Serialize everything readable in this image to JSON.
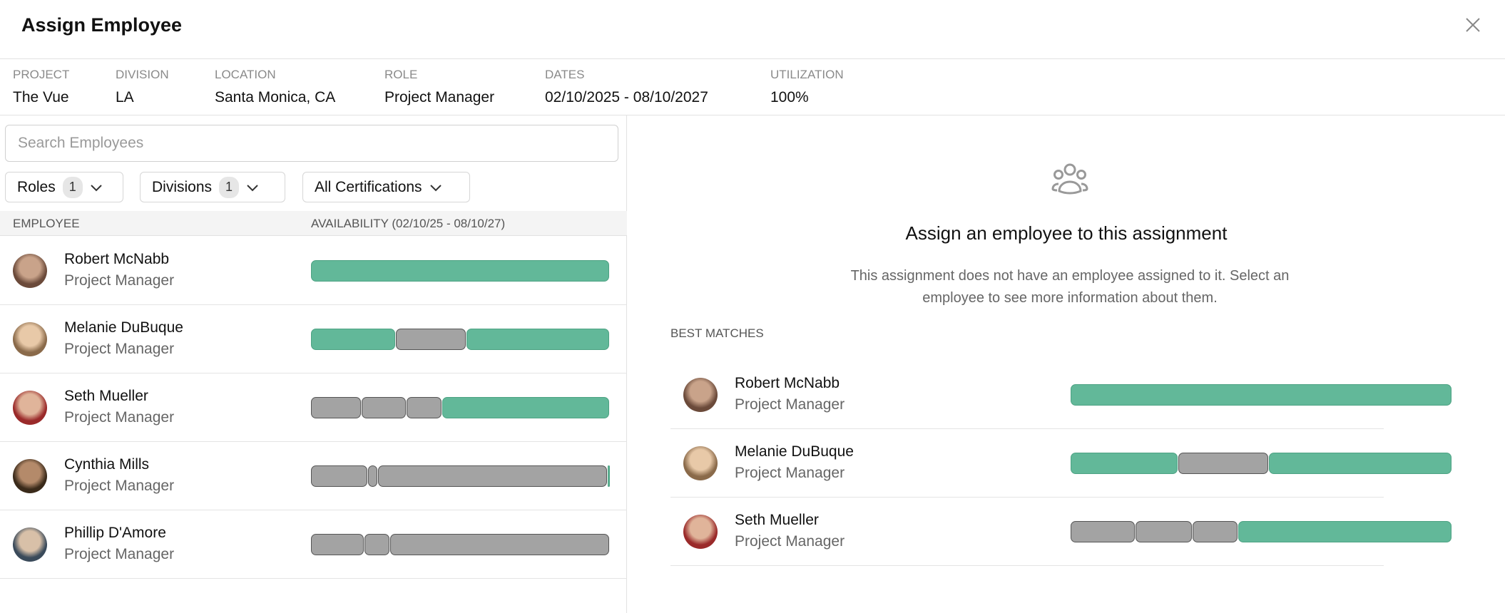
{
  "dialog": {
    "title": "Assign Employee",
    "close_icon": "close-icon"
  },
  "meta": [
    {
      "label": "PROJECT",
      "value": "The Vue"
    },
    {
      "label": "DIVISION",
      "value": "LA"
    },
    {
      "label": "LOCATION",
      "value": "Santa Monica, CA"
    },
    {
      "label": "ROLE",
      "value": "Project Manager"
    },
    {
      "label": "DATES",
      "value": "02/10/2025 - 08/10/2027"
    },
    {
      "label": "UTILIZATION",
      "value": "100%"
    }
  ],
  "search": {
    "placeholder": "Search Employees",
    "value": ""
  },
  "filters": [
    {
      "label": "Roles",
      "count": "1"
    },
    {
      "label": "Divisions",
      "count": "1"
    },
    {
      "label": "All Certifications"
    }
  ],
  "table": {
    "col_employee": "EMPLOYEE",
    "col_availability": "AVAILABILITY (02/10/25 - 08/10/27)"
  },
  "colors": {
    "available": "#62b899",
    "unavailable": "#a3a3a3"
  },
  "employees": [
    {
      "name": "Robert McNabb",
      "role": "Project Manager",
      "avatar": [
        "#c9a38a",
        "#6b4a3a"
      ],
      "segments": [
        [
          0,
          1,
          "available"
        ]
      ]
    },
    {
      "name": "Melanie DuBuque",
      "role": "Project Manager",
      "avatar": [
        "#e8c9a8",
        "#8a6a4a"
      ],
      "segments": [
        [
          0,
          0.283,
          "available"
        ],
        [
          0.283,
          0.52,
          "unavailable"
        ],
        [
          0.52,
          1,
          "available"
        ]
      ]
    },
    {
      "name": "Seth Mueller",
      "role": "Project Manager",
      "avatar": [
        "#e0b49a",
        "#9a2a2a"
      ],
      "segments": [
        [
          0,
          0.17,
          "unavailable"
        ],
        [
          0.17,
          0.32,
          "unavailable"
        ],
        [
          0.32,
          0.44,
          "unavailable"
        ],
        [
          0.44,
          1,
          "available"
        ]
      ]
    },
    {
      "name": "Cynthia Mills",
      "role": "Project Manager",
      "avatar": [
        "#b48a6a",
        "#3a2a1a"
      ],
      "segments": [
        [
          0,
          0.19,
          "unavailable"
        ],
        [
          0.19,
          0.225,
          "unavailable"
        ],
        [
          0.225,
          0.992,
          "unavailable"
        ],
        [
          0.992,
          1,
          "available"
        ]
      ]
    },
    {
      "name": "Phillip D'Amore",
      "role": "Project Manager",
      "avatar": [
        "#d8c0a8",
        "#3a4a5a"
      ],
      "segments": [
        [
          0,
          0.178,
          "unavailable"
        ],
        [
          0.178,
          0.265,
          "unavailable"
        ],
        [
          0.265,
          1,
          "unavailable"
        ]
      ]
    }
  ],
  "empty_state": {
    "icon": "people-icon",
    "title": "Assign an employee to this assignment",
    "description": "This assignment does not have an employee assigned to it. Select an employee to see more information about them."
  },
  "best_matches": {
    "label": "BEST MATCHES",
    "items": [
      0,
      1,
      2
    ]
  }
}
